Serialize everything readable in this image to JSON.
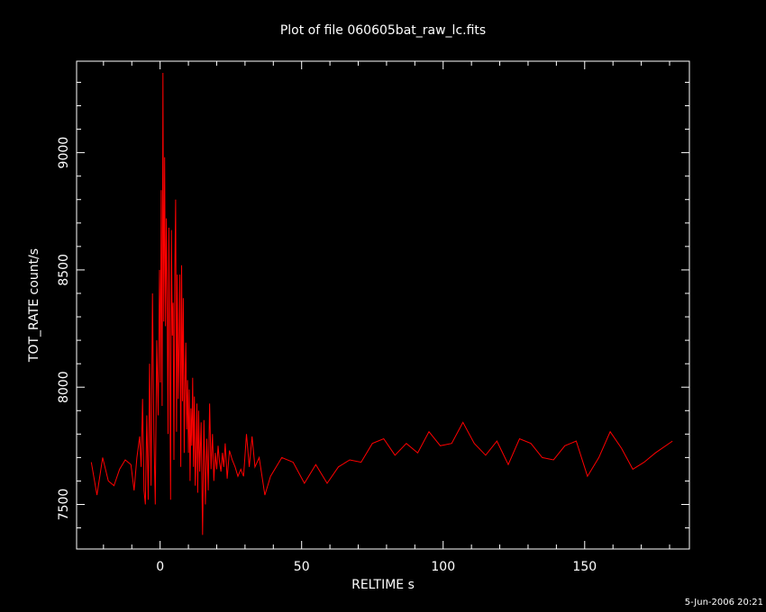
{
  "chart_data": {
    "type": "line",
    "title": "Plot of file 060605bat_raw_lc.fits",
    "xlabel": "RELTIME  s",
    "ylabel": "TOT_RATE  count/s",
    "xlim": [
      -29.5,
      187
    ],
    "ylim": [
      7310,
      9390
    ],
    "xticks": [
      0,
      50,
      100,
      150
    ],
    "yticks": [
      7500,
      8000,
      8500,
      9000
    ],
    "grid": false,
    "colors": {
      "background": "#000000",
      "axes": "#ffffff",
      "series": "#ff0000"
    },
    "series": [
      {
        "x": [
          -24.3,
          -22.3,
          -20.3,
          -18.3,
          -16.3,
          -14.3,
          -12.3,
          -10.3,
          -9.2,
          -8.2,
          -7.2,
          -6.7,
          -6.2,
          -5.7,
          -5.2,
          -4.7,
          -4.2,
          -3.7,
          -3.2,
          -2.7,
          -2.2,
          -1.7,
          -1.2,
          -0.7,
          -0.2,
          0.1,
          0.4,
          0.7,
          1.0,
          1.3,
          1.6,
          1.9,
          2.2,
          2.5,
          2.8,
          3.1,
          3.4,
          3.7,
          4.0,
          4.3,
          4.6,
          4.9,
          5.2,
          5.5,
          5.8,
          6.1,
          6.4,
          6.7,
          7.0,
          7.3,
          7.6,
          7.9,
          8.2,
          8.5,
          8.8,
          9.1,
          9.4,
          9.7,
          10.0,
          10.3,
          10.6,
          10.9,
          11.2,
          11.5,
          11.8,
          12.1,
          12.4,
          12.7,
          13.0,
          13.3,
          13.6,
          14.0,
          14.5,
          15.0,
          15.5,
          16.0,
          16.5,
          17.0,
          17.5,
          18.0,
          18.5,
          19.0,
          19.5,
          20.0,
          20.5,
          21.0,
          21.5,
          22.0,
          22.5,
          23.0,
          23.7,
          24.5,
          25.5,
          26.5,
          27.5,
          28.5,
          29.5,
          30.5,
          31.5,
          32.5,
          33.5,
          35.0,
          37.0,
          39.0,
          43.0,
          47.0,
          51.0,
          55.0,
          59.0,
          63.0,
          67.0,
          71.0,
          75.0,
          79.0,
          83.0,
          87.0,
          91.0,
          95.0,
          99.0,
          103.0,
          107.0,
          111.0,
          115.0,
          119.0,
          123.0,
          127.0,
          131.0,
          135.0,
          139.0,
          143.0,
          147.0,
          151.0,
          155.0,
          159.0,
          163.0,
          167.0,
          171.0,
          175.0,
          181.0
        ],
        "y": [
          7680,
          7540,
          7700,
          7600,
          7580,
          7650,
          7690,
          7670,
          7560,
          7700,
          7790,
          7660,
          7950,
          7560,
          7500,
          7880,
          7520,
          8100,
          7580,
          8400,
          7820,
          7500,
          8200,
          7880,
          8500,
          8020,
          8840,
          7920,
          9340,
          8280,
          8980,
          8260,
          8720,
          8340,
          7800,
          8680,
          8120,
          7520,
          8670,
          8220,
          8360,
          7690,
          8500,
          8800,
          7810,
          8480,
          7950,
          8180,
          8480,
          7660,
          8520,
          7940,
          8380,
          7720,
          8020,
          8190,
          7820,
          8030,
          7720,
          7990,
          7600,
          7910,
          7750,
          8040,
          7660,
          7960,
          7580,
          7700,
          7930,
          7550,
          7900,
          7640,
          7850,
          7370,
          7860,
          7500,
          7780,
          7560,
          7930,
          7650,
          7800,
          7600,
          7720,
          7650,
          7750,
          7680,
          7640,
          7720,
          7660,
          7760,
          7610,
          7730,
          7690,
          7660,
          7620,
          7650,
          7620,
          7800,
          7660,
          7790,
          7660,
          7700,
          7540,
          7620,
          7700,
          7680,
          7590,
          7670,
          7590,
          7660,
          7690,
          7680,
          7760,
          7780,
          7710,
          7760,
          7720,
          7810,
          7750,
          7760,
          7850,
          7760,
          7710,
          7770,
          7670,
          7780,
          7760,
          7700,
          7690,
          7750,
          7770,
          7620,
          7700,
          7810,
          7740,
          7650,
          7680,
          7720,
          7770
        ]
      }
    ]
  },
  "footer": {
    "timestamp": "5-Jun-2006 20:21"
  }
}
